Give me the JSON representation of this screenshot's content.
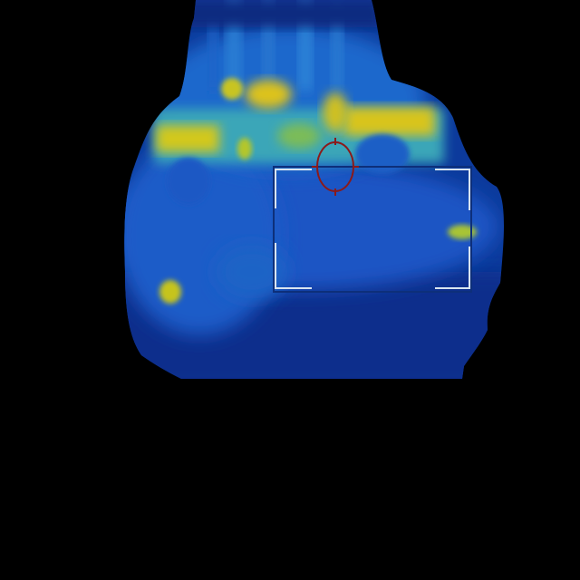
{
  "view": {
    "background_color": "#000000",
    "palette": {
      "low": "#0a2a8c",
      "mid": "#1d5fd0",
      "cool": "#2a8fd8",
      "warm": "#3fbf8a",
      "hot": "#c8d21e",
      "hottest": "#e6c81a"
    }
  },
  "hud": {
    "frame_color": "#d8e4f0",
    "box_outline_color": "#0d2f7a",
    "reticle_color": "#8b1a1a",
    "reticle_icon": "crosshair-ellipse-icon"
  }
}
